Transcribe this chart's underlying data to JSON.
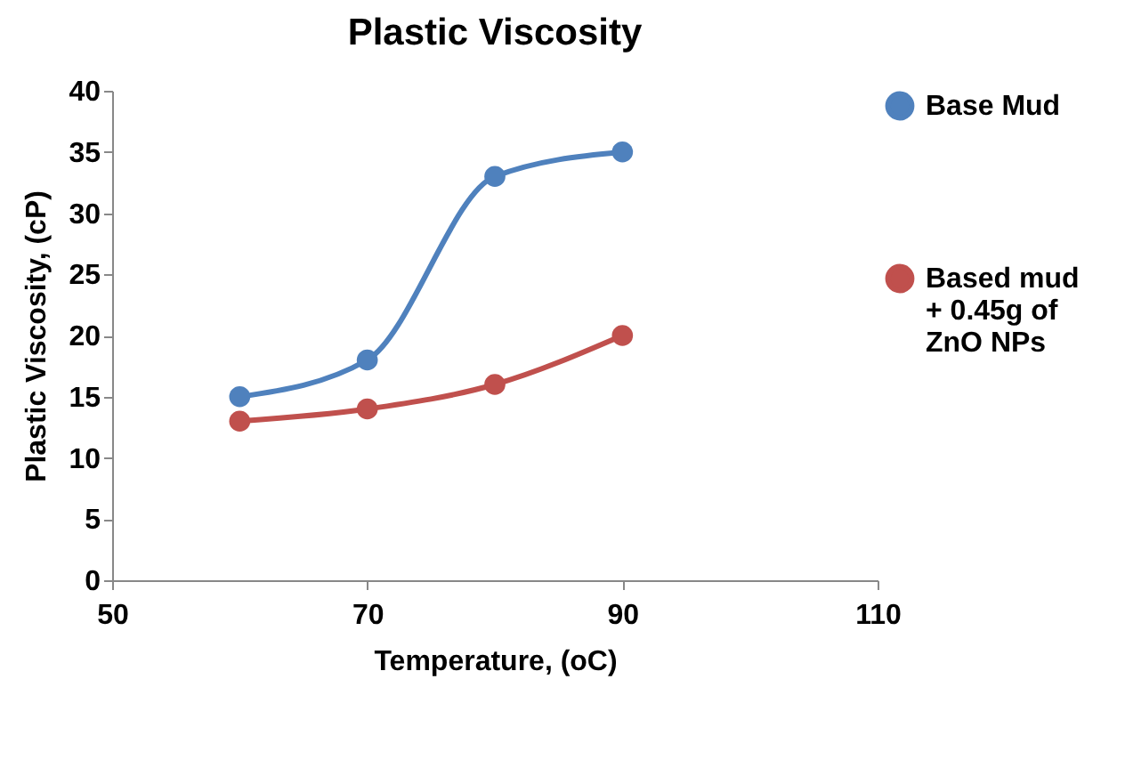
{
  "chart_data": {
    "type": "line",
    "title": "Plastic Viscosity",
    "xlabel": "Temperature, (oC)",
    "ylabel": "Plastic Viscosity, (cP)",
    "x": [
      60,
      70,
      80,
      90
    ],
    "series": [
      {
        "name": "Base Mud",
        "color": "#4f81bd",
        "values": [
          15,
          18,
          33,
          35
        ]
      },
      {
        "name": "Based mud + 0.45g of ZnO NPs",
        "color": "#c0504d",
        "values": [
          13,
          14,
          16,
          20
        ]
      }
    ],
    "xlim": [
      50,
      110
    ],
    "xticks": [
      50,
      70,
      90,
      110
    ],
    "ylim": [
      0,
      40
    ],
    "yticks": [
      0,
      5,
      10,
      15,
      20,
      25,
      30,
      35,
      40
    ],
    "grid": false,
    "legend": "right",
    "marker": "circle",
    "line_style": "solid"
  }
}
